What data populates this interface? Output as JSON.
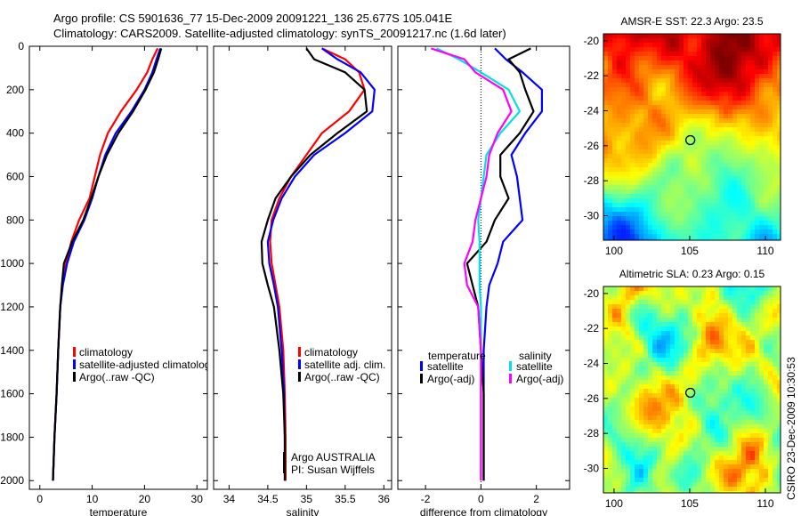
{
  "title": {
    "line1": "Argo profile: CS 5901636_77 15-Dec-2009 20091221_136 25.677S 105.041E",
    "line2": "Climatology: CARS2009. Satellite-adjusted climatology: synTS_20091217.nc (1.6d later)"
  },
  "side_label": "CSIRO 23-Dec-2009 10:30:53",
  "colors": {
    "climatology": "#ff0000",
    "satellite": "#0000ff",
    "argo": "#000000",
    "cyan": "#00e0e8",
    "magenta": "#ff00ff"
  },
  "chart_data": [
    {
      "type": "line",
      "id": "temperature",
      "xlabel": "temperature",
      "xlim": [
        -2,
        32
      ],
      "ylim": [
        2040,
        0
      ],
      "xticks": [
        0,
        10,
        20,
        30
      ],
      "yticks": [
        0,
        200,
        400,
        600,
        800,
        1000,
        1200,
        1400,
        1600,
        1800,
        2000
      ],
      "legend": [
        "climatology",
        "satellite-adjusted climatology",
        "Argo(..raw -QC)"
      ],
      "series": [
        {
          "name": "climatology",
          "color": "#ff0000",
          "points": [
            [
              22.5,
              10
            ],
            [
              21.5,
              60
            ],
            [
              20.5,
              120
            ],
            [
              18.5,
              200
            ],
            [
              15.5,
              300
            ],
            [
              13,
              400
            ],
            [
              11.5,
              500
            ],
            [
              10.5,
              600
            ],
            [
              9.5,
              700
            ],
            [
              7.5,
              800
            ],
            [
              6,
              900
            ],
            [
              5,
              1000
            ],
            [
              4.3,
              1100
            ],
            [
              3.9,
              1200
            ],
            [
              3.5,
              1400
            ],
            [
              3.2,
              1600
            ],
            [
              2.8,
              1800
            ],
            [
              2.5,
              2000
            ]
          ]
        },
        {
          "name": "satellite-adjusted climatology",
          "color": "#0000ff",
          "points": [
            [
              23,
              10
            ],
            [
              22.3,
              60
            ],
            [
              21.5,
              120
            ],
            [
              20,
              200
            ],
            [
              17.5,
              300
            ],
            [
              14.5,
              400
            ],
            [
              12.5,
              500
            ],
            [
              11.2,
              600
            ],
            [
              10,
              700
            ],
            [
              8.5,
              800
            ],
            [
              6.5,
              900
            ],
            [
              5.2,
              1000
            ],
            [
              4.4,
              1100
            ],
            [
              3.9,
              1200
            ],
            [
              3.5,
              1400
            ],
            [
              3.2,
              1600
            ],
            [
              2.8,
              1800
            ],
            [
              2.5,
              2000
            ]
          ]
        },
        {
          "name": "Argo(..raw -QC)",
          "color": "#000000",
          "points": [
            [
              23.2,
              10
            ],
            [
              22.6,
              60
            ],
            [
              21.8,
              120
            ],
            [
              20.2,
              200
            ],
            [
              17.8,
              300
            ],
            [
              15,
              400
            ],
            [
              12.8,
              500
            ],
            [
              11.2,
              600
            ],
            [
              9.8,
              700
            ],
            [
              8.3,
              800
            ],
            [
              6.2,
              900
            ],
            [
              4.6,
              1000
            ],
            [
              4.2,
              1100
            ],
            [
              3.9,
              1200
            ],
            [
              3.5,
              1400
            ],
            [
              3.2,
              1600
            ],
            [
              2.8,
              1800
            ],
            [
              2.5,
              2000
            ]
          ]
        }
      ]
    },
    {
      "type": "line",
      "id": "salinity",
      "xlabel": "salinity",
      "xlim": [
        33.8,
        36.1
      ],
      "ylim": [
        2040,
        0
      ],
      "xticks": [
        34,
        34.5,
        35,
        35.5,
        36
      ],
      "legend": [
        "climatology",
        "satellite adj. clim.",
        "Argo(..raw -QC)"
      ],
      "annotation": [
        "Argo AUSTRALIA",
        "PI: Susan Wijffels"
      ],
      "series": [
        {
          "name": "climatology",
          "color": "#ff0000",
          "points": [
            [
              35.2,
              10
            ],
            [
              35.5,
              60
            ],
            [
              35.68,
              120
            ],
            [
              35.75,
              200
            ],
            [
              35.55,
              300
            ],
            [
              35.2,
              400
            ],
            [
              35,
              500
            ],
            [
              34.8,
              600
            ],
            [
              34.65,
              700
            ],
            [
              34.55,
              800
            ],
            [
              34.53,
              900
            ],
            [
              34.55,
              1000
            ],
            [
              34.6,
              1100
            ],
            [
              34.65,
              1200
            ],
            [
              34.7,
              1400
            ],
            [
              34.72,
              1600
            ],
            [
              34.73,
              1800
            ],
            [
              34.73,
              2000
            ]
          ]
        },
        {
          "name": "satellite adj. clim.",
          "color": "#0000ff",
          "points": [
            [
              35.2,
              10
            ],
            [
              35.4,
              60
            ],
            [
              35.7,
              120
            ],
            [
              35.88,
              200
            ],
            [
              35.85,
              300
            ],
            [
              35.5,
              400
            ],
            [
              35.1,
              500
            ],
            [
              34.85,
              600
            ],
            [
              34.68,
              700
            ],
            [
              34.57,
              800
            ],
            [
              34.5,
              900
            ],
            [
              34.52,
              1000
            ],
            [
              34.58,
              1100
            ],
            [
              34.63,
              1200
            ],
            [
              34.68,
              1400
            ],
            [
              34.71,
              1600
            ],
            [
              34.72,
              1800
            ],
            [
              34.72,
              2000
            ]
          ]
        },
        {
          "name": "Argo(..raw -QC)",
          "color": "#000000",
          "points": [
            [
              35,
              10
            ],
            [
              35.1,
              60
            ],
            [
              35.5,
              120
            ],
            [
              35.75,
              200
            ],
            [
              35.78,
              300
            ],
            [
              35.4,
              400
            ],
            [
              35.05,
              500
            ],
            [
              34.8,
              600
            ],
            [
              34.6,
              700
            ],
            [
              34.5,
              800
            ],
            [
              34.42,
              900
            ],
            [
              34.43,
              1000
            ],
            [
              34.5,
              1100
            ],
            [
              34.58,
              1200
            ],
            [
              34.65,
              1400
            ],
            [
              34.7,
              1600
            ],
            [
              34.72,
              1800
            ],
            [
              34.72,
              2000
            ]
          ]
        }
      ]
    },
    {
      "type": "line",
      "id": "difference",
      "xlabel": "difference from climatology",
      "xlim": [
        -3,
        3.2
      ],
      "ylim": [
        2040,
        0
      ],
      "xticks": [
        -2,
        0,
        2
      ],
      "legend_headers": [
        "temperature",
        "salinity"
      ],
      "legend": [
        "satellite",
        "Argo(-adj)",
        "satellite",
        "Argo(-adj)"
      ],
      "series": [
        {
          "name": "temperature satellite",
          "color": "#0000ff",
          "points": [
            [
              0.5,
              10
            ],
            [
              0.9,
              60
            ],
            [
              1.5,
              120
            ],
            [
              2.2,
              200
            ],
            [
              2.2,
              300
            ],
            [
              1.6,
              400
            ],
            [
              1.1,
              500
            ],
            [
              1.3,
              600
            ],
            [
              1.4,
              700
            ],
            [
              1.5,
              800
            ],
            [
              0.8,
              900
            ],
            [
              0.6,
              1000
            ],
            [
              0.3,
              1100
            ],
            [
              0.2,
              1200
            ],
            [
              0.1,
              1400
            ],
            [
              0.1,
              1600
            ],
            [
              0.1,
              1800
            ],
            [
              0.1,
              2000
            ]
          ]
        },
        {
          "name": "temperature Argo(-adj)",
          "color": "#000000",
          "points": [
            [
              1.8,
              10
            ],
            [
              1.0,
              60
            ],
            [
              1.4,
              120
            ],
            [
              1.6,
              200
            ],
            [
              1.9,
              300
            ],
            [
              1.4,
              400
            ],
            [
              0.7,
              500
            ],
            [
              0.7,
              600
            ],
            [
              1.0,
              700
            ],
            [
              0.5,
              800
            ],
            [
              0.2,
              900
            ],
            [
              -0.5,
              1000
            ],
            [
              -0.3,
              1100
            ],
            [
              -0.1,
              1200
            ],
            [
              0,
              1400
            ],
            [
              0.1,
              1600
            ],
            [
              0.1,
              1800
            ],
            [
              0.1,
              2000
            ]
          ]
        },
        {
          "name": "salinity satellite",
          "color": "#00e0e8",
          "points": [
            [
              -1.6,
              10
            ],
            [
              -0.8,
              60
            ],
            [
              0,
              120
            ],
            [
              1.0,
              200
            ],
            [
              1.4,
              300
            ],
            [
              0.7,
              400
            ],
            [
              0.2,
              500
            ],
            [
              0.1,
              600
            ],
            [
              0,
              700
            ],
            [
              -0.1,
              800
            ],
            [
              -0.05,
              900
            ],
            [
              -0.05,
              1000
            ],
            [
              -0.05,
              1100
            ],
            [
              0,
              1200
            ],
            [
              0,
              1400
            ],
            [
              0,
              1600
            ],
            [
              0,
              1800
            ],
            [
              0,
              2000
            ]
          ]
        },
        {
          "name": "salinity Argo(-adj)",
          "color": "#ff00ff",
          "points": [
            [
              -1.8,
              10
            ],
            [
              -0.6,
              60
            ],
            [
              -0.2,
              120
            ],
            [
              0.8,
              200
            ],
            [
              1.1,
              300
            ],
            [
              0.6,
              400
            ],
            [
              0.3,
              500
            ],
            [
              0.2,
              600
            ],
            [
              0,
              700
            ],
            [
              -0.2,
              800
            ],
            [
              -0.3,
              900
            ],
            [
              -0.6,
              1000
            ],
            [
              -0.5,
              1100
            ],
            [
              -0.1,
              1200
            ],
            [
              0,
              1400
            ],
            [
              0,
              1600
            ],
            [
              0,
              1800
            ],
            [
              0,
              2000
            ]
          ]
        }
      ]
    },
    {
      "type": "heatmap",
      "id": "sst",
      "title": "AMSR-E SST: 22.3 Argo: 23.5",
      "xlim": [
        99.3,
        111
      ],
      "ylim": [
        -31.4,
        -19.6
      ],
      "xticks": [
        100,
        105,
        110
      ],
      "yticks": [
        -20,
        -22,
        -24,
        -26,
        -28,
        -30
      ],
      "marker": [
        105.041,
        -25.677
      ]
    },
    {
      "type": "heatmap",
      "id": "sla",
      "title": "Altimetric SLA: 0.23 Argo: 0.15",
      "xlim": [
        99.3,
        111
      ],
      "ylim": [
        -31.4,
        -19.6
      ],
      "xticks": [
        100,
        105,
        110
      ],
      "yticks": [
        -20,
        -22,
        -24,
        -26,
        -28,
        -30
      ],
      "marker": [
        105.041,
        -25.677
      ]
    }
  ]
}
